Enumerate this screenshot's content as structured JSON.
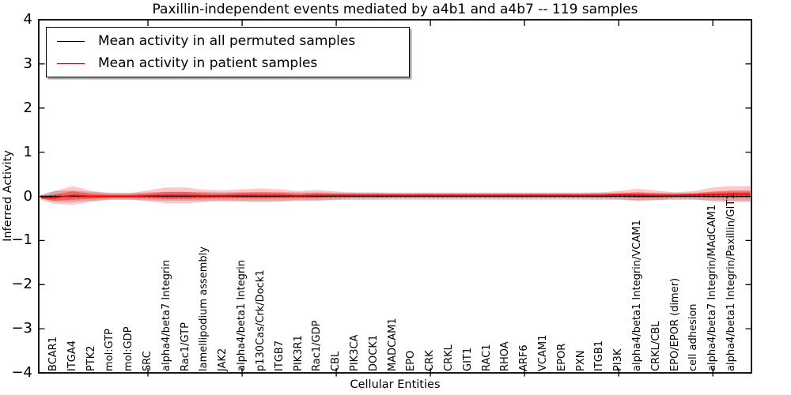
{
  "chart": {
    "title": "Paxillin-independent events mediated by a4b1 and a4b7 -- 119 samples",
    "xlabel": "Cellular Entities",
    "ylabel": "Inferred Activity",
    "legend": [
      {
        "label": "Mean activity in all permuted samples",
        "color": "#000000"
      },
      {
        "label": "Mean activity in patient samples",
        "color": "#ff0000"
      }
    ]
  },
  "chart_data": {
    "type": "line",
    "title": "Paxillin-independent events mediated by a4b1 and a4b7 -- 119 samples",
    "xlabel": "Cellular Entities",
    "ylabel": "Inferred Activity",
    "ylim": [
      -4,
      4
    ],
    "yticks": [
      -4,
      -3,
      -2,
      -1,
      0,
      1,
      2,
      3,
      4
    ],
    "ytick_labels": [
      "−4",
      "−3",
      "−2",
      "−1",
      "0",
      "1",
      "2",
      "3",
      "4"
    ],
    "xticks": [
      5,
      10,
      15,
      20,
      25,
      30,
      35
    ],
    "grid": false,
    "legend_position": "upper left",
    "categories": [
      "BCAR1",
      "ITGA4",
      "PTK2",
      "mol:GTP",
      "mol:GDP",
      "SRC",
      "alpha4/beta7 Integrin",
      "Rac1/GTP",
      "lamellipodium assembly",
      "JAK2",
      "alpha4/beta1 Integrin",
      "p130Cas/Crk/Dock1",
      "ITGB7",
      "PIK3R1",
      "Rac1/GDP",
      "CBL",
      "PIK3CA",
      "DOCK1",
      "MADCAM1",
      "EPO",
      "CRK",
      "CRKL",
      "GIT1",
      "RAC1",
      "RHOA",
      "ARF6",
      "VCAM1",
      "EPOR",
      "PXN",
      "ITGB1",
      "PI3K",
      "alpha4/beta1 Integrin/VCAM1",
      "CRKL/CBL",
      "EPO/EPOR (dimer)",
      "cell adhesion",
      "alpha4/beta7 Integrin/MAdCAM1",
      "alpha4/beta1 Integrin/Paxillin/GIT1"
    ],
    "series": [
      {
        "name": "Mean activity in all permuted samples",
        "color": "#000000",
        "values": [
          0,
          0,
          0,
          0,
          0,
          0,
          0,
          0,
          0,
          0,
          0,
          0,
          0,
          0,
          0,
          0,
          0,
          0,
          0,
          0,
          0,
          0,
          0,
          0,
          0,
          0,
          0,
          0,
          0,
          0,
          0,
          0,
          0,
          0,
          0,
          0,
          0
        ]
      },
      {
        "name": "Mean activity in patient samples",
        "color": "#ff0000",
        "values": [
          -0.03,
          0.02,
          0,
          0,
          0,
          0.01,
          0.02,
          0.02,
          0.01,
          0.01,
          0.02,
          0.02,
          0.02,
          0.01,
          0.02,
          0.02,
          0.02,
          0.02,
          0.02,
          0.02,
          0.02,
          0.02,
          0.02,
          0.02,
          0.02,
          0.02,
          0.02,
          0.02,
          0.02,
          0.02,
          0.03,
          0.03,
          0.02,
          0.02,
          0.03,
          0.04,
          0.05
        ]
      }
    ],
    "bands": {
      "permuted_halfwidth": [
        0.12,
        0.13,
        0.1,
        0.08,
        0.08,
        0.09,
        0.1,
        0.1,
        0.1,
        0.09,
        0.1,
        0.1,
        0.1,
        0.09,
        0.09,
        0.08,
        0.08,
        0.08,
        0.075,
        0.075,
        0.075,
        0.075,
        0.075,
        0.075,
        0.075,
        0.075,
        0.075,
        0.075,
        0.075,
        0.08,
        0.08,
        0.09,
        0.08,
        0.08,
        0.08,
        0.09,
        0.1
      ],
      "patient_outer_halfwidth": [
        0.14,
        0.21,
        0.125,
        0.07,
        0.07,
        0.125,
        0.18,
        0.18,
        0.14,
        0.125,
        0.14,
        0.16,
        0.14,
        0.11,
        0.125,
        0.09,
        0.07,
        0.07,
        0.06,
        0.06,
        0.06,
        0.06,
        0.06,
        0.06,
        0.06,
        0.06,
        0.06,
        0.06,
        0.06,
        0.07,
        0.09,
        0.14,
        0.11,
        0.07,
        0.09,
        0.16,
        0.18
      ],
      "patient_inner_halfwidth": [
        0.07,
        0.095,
        0.055,
        0.035,
        0.035,
        0.055,
        0.08,
        0.08,
        0.06,
        0.05,
        0.06,
        0.07,
        0.06,
        0.045,
        0.055,
        0.04,
        0.035,
        0.035,
        0.03,
        0.03,
        0.03,
        0.03,
        0.03,
        0.03,
        0.03,
        0.03,
        0.03,
        0.03,
        0.03,
        0.035,
        0.04,
        0.06,
        0.05,
        0.035,
        0.04,
        0.07,
        0.08
      ]
    },
    "colors": {
      "patient_band": "#ff0000",
      "permuted_band": "#808080",
      "frame": "#000000"
    }
  }
}
